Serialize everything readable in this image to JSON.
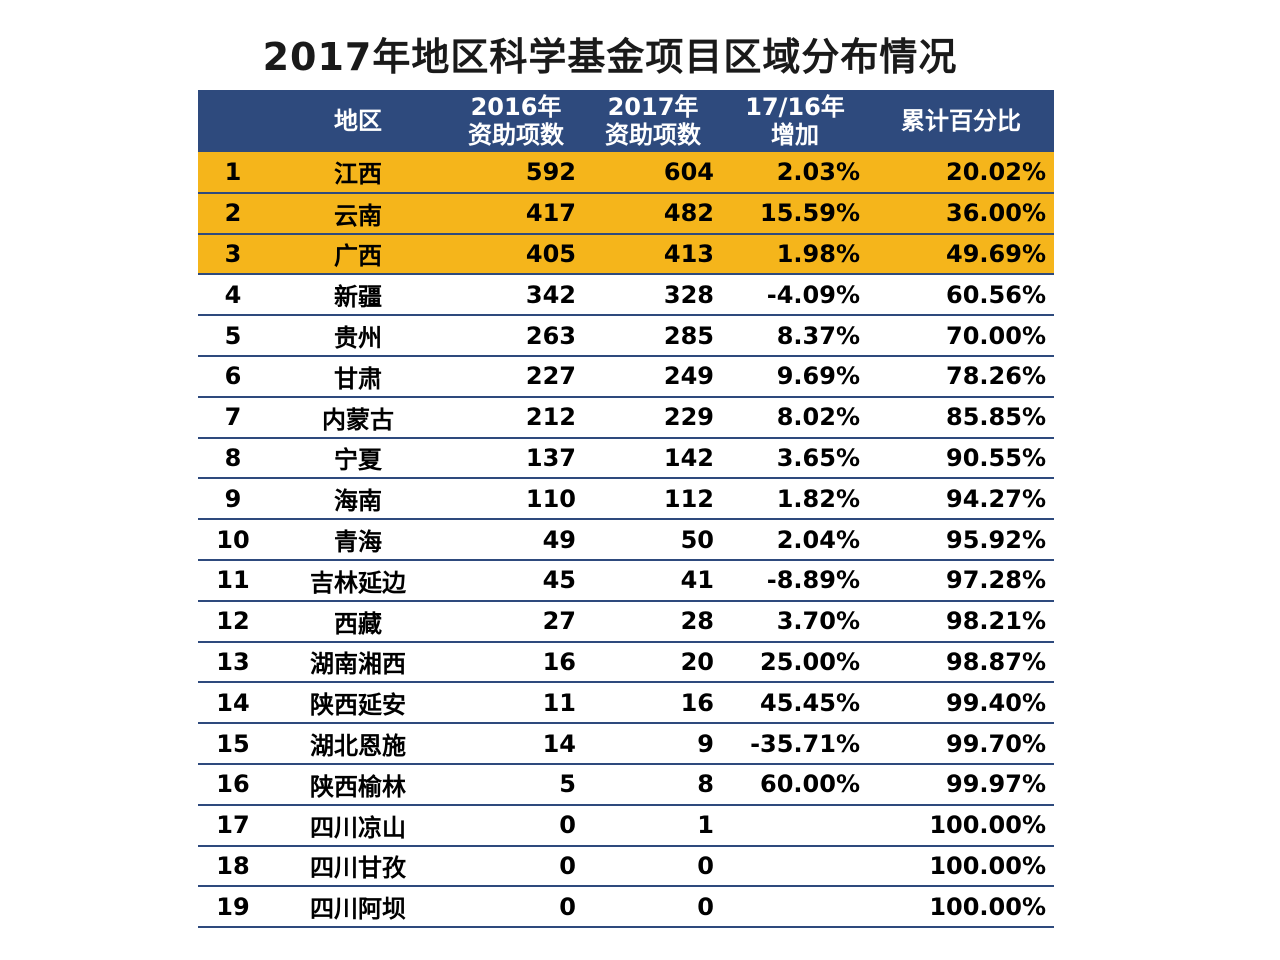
{
  "chart_data": {
    "type": "table",
    "title": "2017年地区科学基金项目区域分布情况",
    "header": {
      "rank": "",
      "region": "地区",
      "y2016_line1": "2016年",
      "y2016_line2": "资助项数",
      "y2017_line1": "2017年",
      "y2017_line2": "资助项数",
      "increase_line1": "17/16年",
      "increase_line2": "增加",
      "cumulative": "累计百分比"
    },
    "highlight_color": "#f5b51b",
    "header_color": "#2e4a7d",
    "highlighted_rows": [
      1,
      2,
      3
    ],
    "rows": [
      {
        "rank": "1",
        "region": "江西",
        "y2016": "592",
        "y2017": "604",
        "increase": "2.03%",
        "cumulative": "20.02%"
      },
      {
        "rank": "2",
        "region": "云南",
        "y2016": "417",
        "y2017": "482",
        "increase": "15.59%",
        "cumulative": "36.00%"
      },
      {
        "rank": "3",
        "region": "广西",
        "y2016": "405",
        "y2017": "413",
        "increase": "1.98%",
        "cumulative": "49.69%"
      },
      {
        "rank": "4",
        "region": "新疆",
        "y2016": "342",
        "y2017": "328",
        "increase": "-4.09%",
        "cumulative": "60.56%"
      },
      {
        "rank": "5",
        "region": "贵州",
        "y2016": "263",
        "y2017": "285",
        "increase": "8.37%",
        "cumulative": "70.00%"
      },
      {
        "rank": "6",
        "region": "甘肃",
        "y2016": "227",
        "y2017": "249",
        "increase": "9.69%",
        "cumulative": "78.26%"
      },
      {
        "rank": "7",
        "region": "内蒙古",
        "y2016": "212",
        "y2017": "229",
        "increase": "8.02%",
        "cumulative": "85.85%"
      },
      {
        "rank": "8",
        "region": "宁夏",
        "y2016": "137",
        "y2017": "142",
        "increase": "3.65%",
        "cumulative": "90.55%"
      },
      {
        "rank": "9",
        "region": "海南",
        "y2016": "110",
        "y2017": "112",
        "increase": "1.82%",
        "cumulative": "94.27%"
      },
      {
        "rank": "10",
        "region": "青海",
        "y2016": "49",
        "y2017": "50",
        "increase": "2.04%",
        "cumulative": "95.92%"
      },
      {
        "rank": "11",
        "region": "吉林延边",
        "y2016": "45",
        "y2017": "41",
        "increase": "-8.89%",
        "cumulative": "97.28%"
      },
      {
        "rank": "12",
        "region": "西藏",
        "y2016": "27",
        "y2017": "28",
        "increase": "3.70%",
        "cumulative": "98.21%"
      },
      {
        "rank": "13",
        "region": "湖南湘西",
        "y2016": "16",
        "y2017": "20",
        "increase": "25.00%",
        "cumulative": "98.87%"
      },
      {
        "rank": "14",
        "region": "陕西延安",
        "y2016": "11",
        "y2017": "16",
        "increase": "45.45%",
        "cumulative": "99.40%"
      },
      {
        "rank": "15",
        "region": "湖北恩施",
        "y2016": "14",
        "y2017": "9",
        "increase": "-35.71%",
        "cumulative": "99.70%"
      },
      {
        "rank": "16",
        "region": "陕西榆林",
        "y2016": "5",
        "y2017": "8",
        "increase": "60.00%",
        "cumulative": "99.97%"
      },
      {
        "rank": "17",
        "region": "四川凉山",
        "y2016": "0",
        "y2017": "1",
        "increase": "",
        "cumulative": "100.00%"
      },
      {
        "rank": "18",
        "region": "四川甘孜",
        "y2016": "0",
        "y2017": "0",
        "increase": "",
        "cumulative": "100.00%"
      },
      {
        "rank": "19",
        "region": "四川阿坝",
        "y2016": "0",
        "y2017": "0",
        "increase": "",
        "cumulative": "100.00%"
      }
    ]
  }
}
